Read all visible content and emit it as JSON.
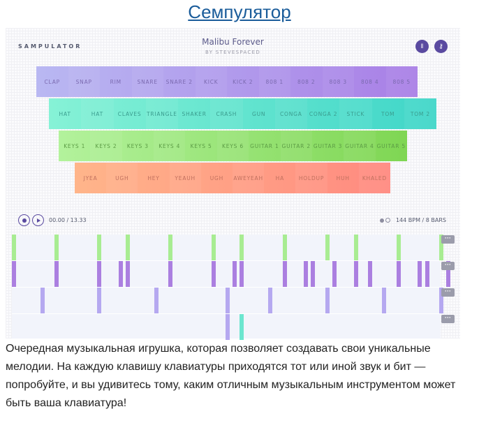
{
  "article": {
    "title": "Семпулятор",
    "description": "Очередная музыкальная игрушка, которая позволяет создавать свои уникальные мелодии. На каждую клавишу клавиатуры приходятся тот или иной звук и бит — попробуйте, и вы удивитесь тому, каким отличным музыкальным инструментом может быть ваша клавиатура!"
  },
  "app": {
    "brand": "SAMPULATOR",
    "song_title": "Malibu Forever",
    "byline": "BY STEVESPACED",
    "icons": {
      "sound": "sound-wave-icon",
      "key": "key-icon"
    }
  },
  "keyboard": {
    "rows": [
      {
        "name": "drums",
        "colors": [
          "#b9b8f2",
          "#a97fe6"
        ],
        "text_color": "#7b6ab0",
        "keys": [
          "CLAP",
          "SNAP",
          "RIM",
          "SNARE",
          "SNARE 2",
          "KICK",
          "KICK 2",
          "808 1",
          "808 2",
          "808 3",
          "808 4",
          "808 5"
        ]
      },
      {
        "name": "percussion",
        "colors": [
          "#86f2d6",
          "#3fd6c8"
        ],
        "text_color": "#3a9c8e",
        "keys": [
          "HAT",
          "HAT",
          "CLAVES",
          "TRIANGLE",
          "SHAKER",
          "CRASH",
          "GUN",
          "CONGA",
          "CONGA 2",
          "STICK",
          "TOM",
          "TOM 2"
        ]
      },
      {
        "name": "melodic",
        "colors": [
          "#b3f29c",
          "#7fd653"
        ],
        "text_color": "#5c9c45",
        "keys": [
          "KEYS 1",
          "KEYS 2",
          "KEYS 3",
          "KEYS 4",
          "KEYS 5",
          "KEYS 6",
          "GUITAR 1",
          "GUITAR 2",
          "GUITAR 3",
          "GUITAR 4",
          "GUITAR 5"
        ]
      },
      {
        "name": "vocals",
        "colors": [
          "#ffb58a",
          "#ff8a80"
        ],
        "text_color": "#c0705e",
        "keys": [
          "JYEA",
          "UGH",
          "HEY",
          "YEAUH",
          "UGH",
          "AWEYEAH",
          "HA",
          "HOLDUP",
          "HUH",
          "KHALED"
        ]
      }
    ]
  },
  "transport": {
    "record_label": "record",
    "play_label": "play",
    "time": "00.00 / 13.33",
    "tempo": "144 BPM / 8 BARS"
  },
  "sequencer": {
    "total_steps": 60,
    "more_label": "···",
    "lanes": [
      {
        "name": "lane-1",
        "color": "#a8ec92",
        "steps": [
          0,
          6,
          12,
          16,
          22,
          28,
          32,
          38,
          44,
          48,
          54,
          60
        ]
      },
      {
        "name": "lane-2",
        "color": "#ab7fe0",
        "steps": [
          0,
          6,
          12,
          15,
          16,
          22,
          28,
          31,
          32,
          38,
          41,
          42,
          45,
          48,
          50,
          54,
          57,
          58,
          61
        ]
      },
      {
        "name": "lane-3",
        "color": "#b5a8f0",
        "steps": [
          4,
          12,
          20,
          30,
          36,
          44,
          52,
          60
        ]
      },
      {
        "name": "lane-4",
        "color": "#b5a8f0",
        "steps": [
          30
        ],
        "extra": [
          {
            "step": 32,
            "color": "#6ce6cf"
          }
        ]
      }
    ]
  }
}
